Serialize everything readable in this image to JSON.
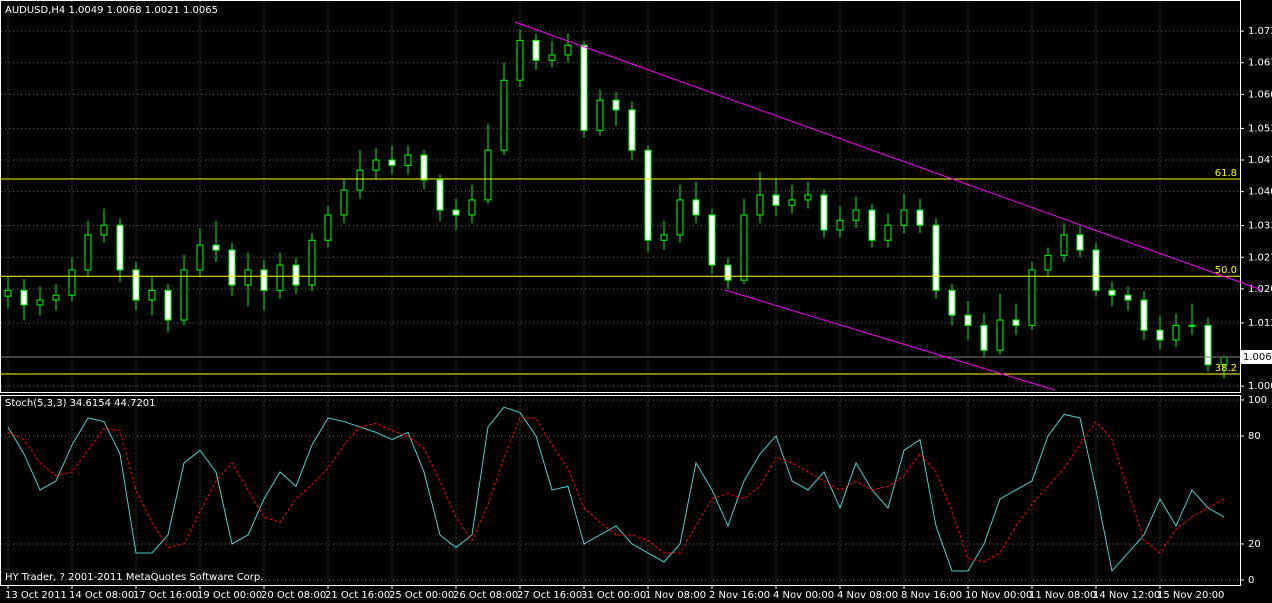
{
  "chart_data": [
    {
      "type": "candlestick",
      "title": "AUDUSD,H4  1.0049 1.0068 1.0021 1.0065",
      "footer": "HY Trader, ? 2001-2011 MetaQuotes Software Corp.",
      "categories": [
        "13 Oct 2011",
        null,
        null,
        null,
        "14 Oct 08:00",
        null,
        null,
        null,
        "17 Oct 16:00",
        null,
        null,
        null,
        "19 Oct 00:00",
        null,
        null,
        null,
        "20 Oct 08:00",
        null,
        null,
        null,
        "21 Oct 16:00",
        null,
        null,
        null,
        "25 Oct 00:00",
        null,
        null,
        null,
        "26 Oct 08:00",
        null,
        null,
        null,
        "27 Oct 16:00",
        null,
        null,
        null,
        "31 Oct 00:00",
        null,
        null,
        null,
        "1 Nov 08:00",
        null,
        null,
        null,
        "2 Nov 16:00",
        null,
        null,
        null,
        "4 Nov 00:00",
        null,
        null,
        null,
        "4 Nov 08:00",
        null,
        null,
        null,
        "8 Nov 16:00",
        null,
        null,
        null,
        "10 Nov 00:00",
        null,
        null,
        null,
        "11 Nov 08:00",
        null,
        null,
        null,
        "14 Nov 12:00",
        null,
        null,
        null,
        "15 Nov 20:00",
        null,
        null,
        null,
        null
      ],
      "open": [
        1.019,
        1.0202,
        1.0172,
        1.0182,
        1.0192,
        1.0244,
        1.0316,
        1.0336,
        1.0244,
        1.0182,
        1.0202,
        1.0141,
        1.0244,
        1.0295,
        1.0285,
        1.0213,
        1.0244,
        1.0202,
        1.0254,
        1.0213,
        1.0305,
        1.0357,
        1.0408,
        1.0449,
        1.047,
        1.0459,
        1.048,
        1.0429,
        1.0367,
        1.0357,
        1.0388,
        1.049,
        1.0634,
        1.0716,
        1.0675,
        1.0686,
        1.0706,
        1.0531,
        1.0593,
        1.0573,
        1.049,
        1.0305,
        1.0316,
        1.0388,
        1.0357,
        1.0254,
        1.0223,
        1.0357,
        1.0398,
        1.0377,
        1.0388,
        1.0398,
        1.0326,
        1.0346,
        1.0367,
        1.0305,
        1.0336,
        1.0367,
        1.0336,
        1.0202,
        1.0151,
        1.013,
        1.0079,
        1.0141,
        1.013,
        1.0244,
        1.0274,
        1.0316,
        1.0285,
        1.0202,
        1.0192,
        1.0182,
        1.012,
        1.01,
        1.013,
        1.013,
        1.0049
      ],
      "high": [
        1.023,
        1.0225,
        1.021,
        1.0215,
        1.027,
        1.0345,
        1.037,
        1.035,
        1.026,
        1.023,
        1.0215,
        1.0275,
        1.033,
        1.0345,
        1.03,
        1.028,
        1.0265,
        1.028,
        1.027,
        1.032,
        1.0375,
        1.043,
        1.049,
        1.0495,
        1.05,
        1.05,
        1.049,
        1.044,
        1.039,
        1.042,
        1.0545,
        1.067,
        1.074,
        1.073,
        1.0715,
        1.073,
        1.0715,
        1.0615,
        1.061,
        1.059,
        1.05,
        1.0345,
        1.042,
        1.0425,
        1.037,
        1.027,
        1.039,
        1.0445,
        1.043,
        1.042,
        1.0425,
        1.041,
        1.0375,
        1.0395,
        1.038,
        1.036,
        1.04,
        1.039,
        1.035,
        1.0215,
        1.018,
        1.0155,
        1.0195,
        1.0175,
        1.026,
        1.029,
        1.034,
        1.0335,
        1.03,
        1.022,
        1.021,
        1.02,
        1.015,
        1.0155,
        1.0175,
        1.0145,
        1.0068
      ],
      "low": [
        1.0165,
        1.014,
        1.015,
        1.016,
        1.018,
        1.023,
        1.03,
        1.022,
        1.016,
        1.015,
        1.0115,
        1.013,
        1.023,
        1.026,
        1.019,
        1.017,
        1.016,
        1.0185,
        1.0195,
        1.02,
        1.029,
        1.034,
        1.039,
        1.043,
        1.044,
        1.044,
        1.041,
        1.0345,
        1.0325,
        1.034,
        1.038,
        1.048,
        1.062,
        1.0655,
        1.066,
        1.067,
        1.0515,
        1.052,
        1.054,
        1.047,
        1.028,
        1.0285,
        1.03,
        1.034,
        1.0235,
        1.0205,
        1.0215,
        1.034,
        1.0355,
        1.036,
        1.037,
        1.031,
        1.031,
        1.033,
        1.029,
        1.029,
        1.032,
        1.032,
        1.0185,
        1.013,
        1.01,
        1.0065,
        1.007,
        1.011,
        1.012,
        1.023,
        1.026,
        1.027,
        1.019,
        1.017,
        1.016,
        1.01,
        1.008,
        1.0085,
        1.011,
        1.0035,
        1.0021
      ],
      "close": [
        1.0202,
        1.0172,
        1.0182,
        1.0192,
        1.0244,
        1.0316,
        1.0336,
        1.0244,
        1.0182,
        1.0202,
        1.0141,
        1.0244,
        1.0295,
        1.0285,
        1.0213,
        1.0244,
        1.0202,
        1.0254,
        1.0213,
        1.0305,
        1.0357,
        1.0408,
        1.0449,
        1.047,
        1.0459,
        1.048,
        1.0429,
        1.0367,
        1.0357,
        1.0388,
        1.049,
        1.0634,
        1.0716,
        1.0675,
        1.0686,
        1.0706,
        1.0531,
        1.0593,
        1.0573,
        1.049,
        1.0305,
        1.0316,
        1.0388,
        1.0357,
        1.0254,
        1.0223,
        1.0357,
        1.0398,
        1.0377,
        1.0388,
        1.0398,
        1.0326,
        1.0346,
        1.0367,
        1.0305,
        1.0336,
        1.0367,
        1.0336,
        1.0202,
        1.0151,
        1.013,
        1.0079,
        1.0141,
        1.013,
        1.0244,
        1.0274,
        1.0316,
        1.0285,
        1.0202,
        1.0192,
        1.0182,
        1.012,
        1.01,
        1.013,
        1.013,
        1.0049,
        1.0065
      ],
      "up_color": "#000000",
      "down_color": "#ffffff",
      "wick_color": "#00ff00",
      "ylim": [
        0.9993,
        1.0799
      ],
      "yticks": [
        1.0735,
        {
          "value": 1.067,
          "label": "1.0670"
        },
        1.0605,
        1.0535,
        {
          "value": 1.047,
          "label": "1.0470"
        },
        1.0405,
        1.0335,
        {
          "value": 1.027,
          "label": "1.0270"
        },
        1.0205,
        1.0135,
        1.0005
      ],
      "current_price": 1.0065,
      "fib_levels": [
        {
          "name": "61.8",
          "price": 1.0431
        },
        {
          "name": "50.0",
          "price": 1.0231
        },
        {
          "name": "38.2",
          "price": 1.003
        }
      ],
      "fib_color": "#ffff00",
      "grid": true
    },
    {
      "type": "line",
      "title": "Stoch(5,3,3) 34.6154 44.7201",
      "series": [
        {
          "color": "#48d1cc",
          "values": [
            85,
            70,
            50,
            55,
            75,
            90,
            88,
            70,
            15,
            15,
            25,
            65,
            72,
            60,
            20,
            25,
            45,
            60,
            52,
            75,
            90,
            88,
            85,
            82,
            78,
            82,
            60,
            25,
            18,
            25,
            85,
            96,
            93,
            80,
            50,
            52,
            20,
            25,
            30,
            20,
            15,
            10,
            20,
            65,
            50,
            30,
            55,
            70,
            80,
            55,
            50,
            60,
            40,
            65,
            50,
            40,
            72,
            78,
            30,
            5,
            5,
            20,
            45,
            50,
            55,
            80,
            92,
            90,
            50,
            5,
            15,
            25,
            45,
            30,
            50,
            40,
            35
          ]
        },
        {
          "color": "#ff0000",
          "dashed": true,
          "values": [
            82,
            78,
            65,
            58,
            60,
            72,
            84,
            83,
            50,
            32,
            18,
            20,
            38,
            55,
            65,
            50,
            35,
            32,
            45,
            53,
            62,
            75,
            85,
            87,
            83,
            80,
            73,
            55,
            35,
            22,
            42,
            68,
            90,
            90,
            75,
            62,
            40,
            32,
            25,
            25,
            22,
            15,
            15,
            30,
            45,
            48,
            45,
            52,
            68,
            65,
            60,
            55,
            50,
            55,
            50,
            52,
            58,
            70,
            60,
            38,
            12,
            10,
            15,
            30,
            42,
            52,
            62,
            75,
            88,
            78,
            50,
            22,
            15,
            28,
            35,
            40,
            45
          ]
        }
      ],
      "ylim": [
        -2.8,
        102.2
      ],
      "yticks": [
        0,
        20,
        80,
        100
      ],
      "grid": true
    }
  ]
}
